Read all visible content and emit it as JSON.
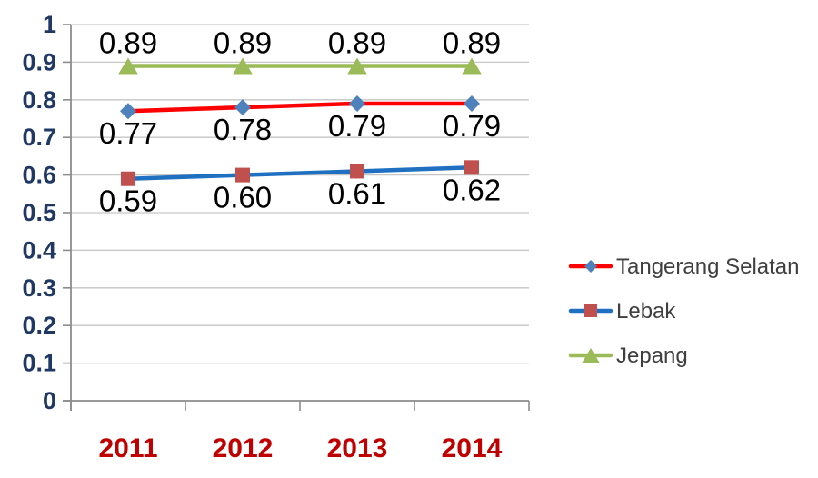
{
  "chart_data": {
    "type": "line",
    "title": "",
    "xlabel": "",
    "ylabel": "",
    "categories": [
      "2011",
      "2012",
      "2013",
      "2014"
    ],
    "series": [
      {
        "name": "Tangerang Selatan",
        "values": [
          0.77,
          0.78,
          0.79,
          0.79
        ],
        "line_color": "#FF0000",
        "marker_shape": "diamond",
        "marker_color": "#4F81BD",
        "data_label_position": "below"
      },
      {
        "name": "Lebak",
        "values": [
          0.59,
          0.6,
          0.61,
          0.62
        ],
        "line_color": "#1F70C0",
        "marker_shape": "square",
        "marker_color": "#C0504D",
        "data_label_position": "below"
      },
      {
        "name": "Jepang",
        "values": [
          0.89,
          0.89,
          0.89,
          0.89
        ],
        "line_color": "#9BBB59",
        "marker_shape": "triangle",
        "marker_color": "#9BBB59",
        "data_label_position": "above"
      }
    ],
    "data_label_decimals": 2,
    "y_axis": {
      "min": 0,
      "max": 1,
      "tick_values": [
        1,
        0.9,
        0.8,
        0.7,
        0.6,
        0.5,
        0.4,
        0.3,
        0.2,
        0.1,
        0
      ],
      "tick_labels": [
        "1",
        "0.9",
        "0.8",
        "0.7",
        "0.6",
        "0.5",
        "0.4",
        "0.3",
        "0.2",
        "0.1",
        "0"
      ],
      "label_color": "#1F3864"
    },
    "x_axis": {
      "label_color": "#C00000"
    },
    "grid": true,
    "legend": {
      "position": "right",
      "text_color": "#3F3F3F"
    },
    "style": {
      "background": "#FFFFFF",
      "gridline_color": "#C6C6C6",
      "axis_color": "#8C8C8C",
      "data_label_color": "#000000"
    }
  }
}
